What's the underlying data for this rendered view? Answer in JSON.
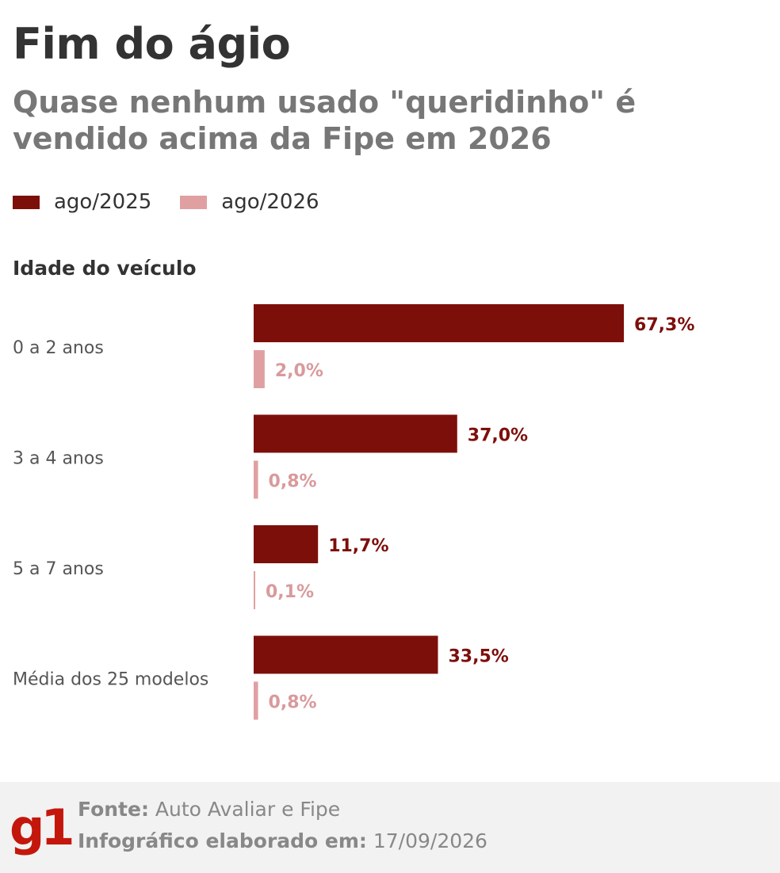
{
  "title": "Fim do ágio",
  "subtitle": "Quase nenhum usado \"queridinho\" é vendido acima da Fipe em 2026",
  "section_label": "Idade do veículo",
  "colors": {
    "ago2025": "#7d0f0b",
    "ago2026": "#e0a0a2",
    "brand": "#c4170c"
  },
  "chart_data": {
    "type": "bar",
    "orientation": "horizontal",
    "categories": [
      "0 a 2 anos",
      "3 a 4 anos",
      "5 a 7 anos",
      "Média dos 25 modelos"
    ],
    "series": [
      {
        "name": "ago/2025",
        "values": [
          67.3,
          37.0,
          11.7,
          33.5
        ],
        "labels": [
          "67,3%",
          "37,0%",
          "11,7%",
          "33,5%"
        ]
      },
      {
        "name": "ago/2026",
        "values": [
          2.0,
          0.8,
          0.1,
          0.8
        ],
        "labels": [
          "2,0%",
          "0,8%",
          "0,1%",
          "0,8%"
        ]
      }
    ],
    "xlim": [
      0,
      100
    ],
    "legend_position": "top-left",
    "grid": false
  },
  "footer": {
    "logo": "g1",
    "source_key": "Fonte:",
    "source_value": "Auto Avaliar e Fipe",
    "date_key": "Infográfico elaborado em:",
    "date_value": "17/09/2026"
  }
}
